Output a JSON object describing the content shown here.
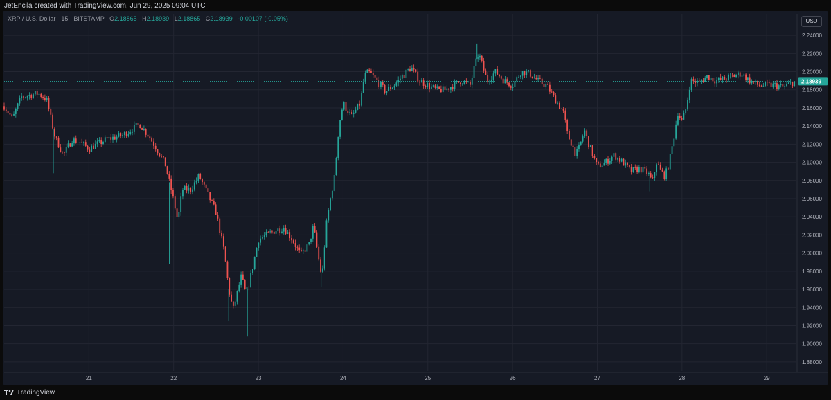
{
  "header": {
    "credit": "JetEncila created with TradingView.com, Jun 29, 2025 09:04 UTC"
  },
  "legend": {
    "symbol": "XRP / U.S. Dollar · 15 · BITSTAMP",
    "open_label": "O",
    "open": "2.18865",
    "high_label": "H",
    "high": "2.18939",
    "low_label": "L",
    "low": "2.18865",
    "close_label": "C",
    "close": "2.18939",
    "change": "-0.00107 (-0.05%)"
  },
  "currency": "USD",
  "footer": {
    "logo_icon": "tradingview-logo-icon",
    "brand": "TradingView"
  },
  "chart_data": {
    "type": "candlestick",
    "title": "XRP / U.S. Dollar · 15 · BITSTAMP",
    "colors": {
      "up": "#26a69a",
      "down": "#ef5350",
      "background": "#161a25",
      "grid": "#232632",
      "price_line": "#26a69a"
    },
    "grid": true,
    "ylim": [
      1.87,
      2.25
    ],
    "y_ticks": [
      "2.24000",
      "2.22000",
      "2.20000",
      "2.18000",
      "2.16000",
      "2.14000",
      "2.12000",
      "2.10000",
      "2.08000",
      "2.06000",
      "2.04000",
      "2.02000",
      "2.00000",
      "1.98000",
      "1.96000",
      "1.94000",
      "1.92000",
      "1.90000",
      "1.88000"
    ],
    "y_tick_values": [
      2.24,
      2.22,
      2.2,
      2.18,
      2.16,
      2.14,
      2.12,
      2.1,
      2.08,
      2.06,
      2.04,
      2.02,
      2.0,
      1.98,
      1.96,
      1.94,
      1.92,
      1.9,
      1.88
    ],
    "x_ticks": [
      "21",
      "22",
      "23",
      "24",
      "25",
      "26",
      "27",
      "28",
      "29"
    ],
    "x_tick_days": [
      21,
      22,
      23,
      24,
      25,
      26,
      27,
      28,
      29
    ],
    "x_range_days": [
      20.0,
      29.35
    ],
    "last_price": "2.18939",
    "last_price_value": 2.18939,
    "path_points": [
      [
        20.0,
        2.162
      ],
      [
        20.1,
        2.148
      ],
      [
        20.2,
        2.172
      ],
      [
        20.4,
        2.176
      ],
      [
        20.5,
        2.17
      ],
      [
        20.6,
        2.128
      ],
      [
        20.7,
        2.108
      ],
      [
        20.8,
        2.125
      ],
      [
        20.9,
        2.122
      ],
      [
        21.0,
        2.115
      ],
      [
        21.2,
        2.125
      ],
      [
        21.4,
        2.13
      ],
      [
        21.6,
        2.142
      ],
      [
        21.7,
        2.13
      ],
      [
        21.8,
        2.115
      ],
      [
        21.9,
        2.098
      ],
      [
        22.0,
        2.058
      ],
      [
        22.05,
        2.035
      ],
      [
        22.1,
        2.07
      ],
      [
        22.2,
        2.07
      ],
      [
        22.3,
        2.085
      ],
      [
        22.4,
        2.065
      ],
      [
        22.5,
        2.045
      ],
      [
        22.6,
        2.0
      ],
      [
        22.65,
        1.96
      ],
      [
        22.7,
        1.937
      ],
      [
        22.8,
        1.975
      ],
      [
        22.85,
        1.955
      ],
      [
        22.9,
        1.97
      ],
      [
        23.0,
        2.015
      ],
      [
        23.1,
        2.02
      ],
      [
        23.2,
        2.025
      ],
      [
        23.3,
        2.028
      ],
      [
        23.4,
        2.015
      ],
      [
        23.5,
        1.998
      ],
      [
        23.6,
        2.01
      ],
      [
        23.65,
        2.03
      ],
      [
        23.7,
        2.0
      ],
      [
        23.75,
        1.972
      ],
      [
        23.8,
        2.03
      ],
      [
        23.85,
        2.06
      ],
      [
        23.9,
        2.085
      ],
      [
        23.95,
        2.14
      ],
      [
        24.0,
        2.165
      ],
      [
        24.1,
        2.15
      ],
      [
        24.2,
        2.165
      ],
      [
        24.25,
        2.195
      ],
      [
        24.3,
        2.2
      ],
      [
        24.4,
        2.19
      ],
      [
        24.5,
        2.178
      ],
      [
        24.6,
        2.185
      ],
      [
        24.7,
        2.195
      ],
      [
        24.8,
        2.205
      ],
      [
        24.9,
        2.19
      ],
      [
        25.0,
        2.185
      ],
      [
        25.1,
        2.18
      ],
      [
        25.2,
        2.18
      ],
      [
        25.3,
        2.185
      ],
      [
        25.4,
        2.19
      ],
      [
        25.5,
        2.185
      ],
      [
        25.55,
        2.205
      ],
      [
        25.6,
        2.22
      ],
      [
        25.7,
        2.19
      ],
      [
        25.8,
        2.2
      ],
      [
        25.9,
        2.19
      ],
      [
        26.0,
        2.185
      ],
      [
        26.1,
        2.2
      ],
      [
        26.2,
        2.198
      ],
      [
        26.3,
        2.19
      ],
      [
        26.4,
        2.185
      ],
      [
        26.5,
        2.17
      ],
      [
        26.6,
        2.155
      ],
      [
        26.65,
        2.13
      ],
      [
        26.7,
        2.12
      ],
      [
        26.75,
        2.108
      ],
      [
        26.8,
        2.12
      ],
      [
        26.85,
        2.135
      ],
      [
        26.9,
        2.12
      ],
      [
        27.0,
        2.095
      ],
      [
        27.1,
        2.1
      ],
      [
        27.2,
        2.108
      ],
      [
        27.3,
        2.1
      ],
      [
        27.4,
        2.09
      ],
      [
        27.5,
        2.093
      ],
      [
        27.6,
        2.088
      ],
      [
        27.65,
        2.078
      ],
      [
        27.7,
        2.1
      ],
      [
        27.75,
        2.09
      ],
      [
        27.8,
        2.085
      ],
      [
        27.85,
        2.1
      ],
      [
        27.9,
        2.125
      ],
      [
        27.95,
        2.155
      ],
      [
        28.0,
        2.145
      ],
      [
        28.05,
        2.16
      ],
      [
        28.1,
        2.19
      ],
      [
        28.2,
        2.188
      ],
      [
        28.3,
        2.195
      ],
      [
        28.4,
        2.19
      ],
      [
        28.5,
        2.192
      ],
      [
        28.6,
        2.195
      ],
      [
        28.7,
        2.198
      ],
      [
        28.8,
        2.19
      ],
      [
        28.9,
        2.185
      ],
      [
        29.0,
        2.185
      ],
      [
        29.1,
        2.185
      ],
      [
        29.2,
        2.183
      ],
      [
        29.3,
        2.188
      ],
      [
        29.35,
        2.1894
      ]
    ],
    "spikes": [
      {
        "day": 20.58,
        "low": 2.088
      },
      {
        "day": 21.95,
        "low": 1.988
      },
      {
        "day": 22.87,
        "low": 1.908
      },
      {
        "day": 22.65,
        "low": 1.925
      },
      {
        "day": 25.58,
        "high": 2.231
      },
      {
        "day": 23.74,
        "low": 1.963
      },
      {
        "day": 27.62,
        "low": 2.068
      }
    ]
  }
}
